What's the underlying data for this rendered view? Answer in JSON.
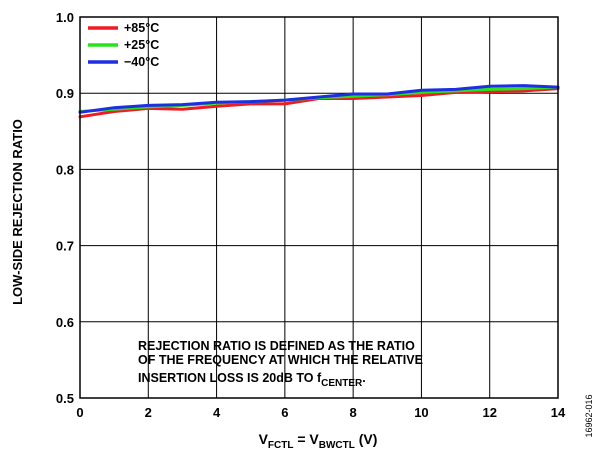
{
  "chart_data": {
    "type": "line",
    "ylabel": "LOW-SIDE REJECTION RATIO",
    "xlabel": {
      "v1": "V",
      "v1_sub": "FCTL",
      "eq": " = ",
      "v2": "V",
      "v2_sub": "BWCTL",
      "unit": " (V)"
    },
    "xlim": [
      0,
      14
    ],
    "ylim": [
      0.5,
      1.0
    ],
    "xticks": [
      "0",
      "2",
      "4",
      "6",
      "8",
      "10",
      "12",
      "14"
    ],
    "yticks": [
      "0.5",
      "0.6",
      "0.7",
      "0.8",
      "0.9",
      "1.0"
    ],
    "grid": true,
    "legend_position": "top-left",
    "series": [
      {
        "name": "+85°C",
        "color": "#ee1c24",
        "x": [
          0,
          1,
          2,
          3,
          4,
          5,
          6,
          7,
          8,
          9,
          10,
          11,
          12,
          13,
          14
        ],
        "y": [
          0.869,
          0.876,
          0.88,
          0.879,
          0.883,
          0.886,
          0.886,
          0.893,
          0.893,
          0.895,
          0.897,
          0.901,
          0.902,
          0.903,
          0.906
        ]
      },
      {
        "name": "+25°C",
        "color": "#27e31d",
        "x": [
          0,
          1,
          2,
          3,
          4,
          5,
          6,
          7,
          8,
          9,
          10,
          11,
          12,
          13,
          14
        ],
        "y": [
          0.876,
          0.879,
          0.882,
          0.884,
          0.887,
          0.889,
          0.891,
          0.894,
          0.896,
          0.898,
          0.901,
          0.903,
          0.905,
          0.906,
          0.908
        ]
      },
      {
        "name": "−40°C",
        "color": "#1d2ee3",
        "x": [
          0,
          1,
          2,
          3,
          4,
          5,
          6,
          7,
          8,
          9,
          10,
          11,
          12,
          13,
          14
        ],
        "y": [
          0.875,
          0.881,
          0.884,
          0.885,
          0.888,
          0.889,
          0.891,
          0.895,
          0.899,
          0.899,
          0.904,
          0.905,
          0.909,
          0.91,
          0.908
        ]
      }
    ],
    "annotation": {
      "line1": "REJECTION RATIO IS DEFINED AS THE RATIO",
      "line2": "OF THE FREQUENCY AT WHICH THE RELATIVE",
      "line3": "INSERTION LOSS IS 20dB TO f",
      "line3_sub": "CENTER",
      "line3_end": "."
    },
    "figure_id": "16962-016"
  }
}
